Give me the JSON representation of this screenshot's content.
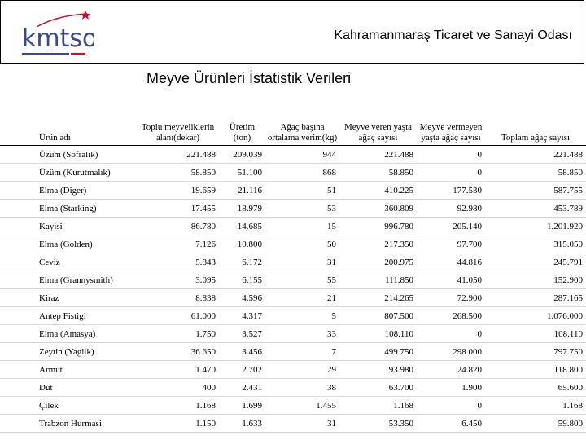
{
  "header": {
    "org_name": "Kahramanmaraş Ticaret ve Sanayi Odası",
    "logo_text": "kmtso",
    "logo_accent": "#c8102e",
    "logo_blue": "#3b4a8c"
  },
  "title": "Meyve Ürünleri İstatistik Verileri",
  "table": {
    "columns": [
      "Ürün adı",
      "Toplu meyveliklerin alanı(dekar)",
      "Üretim (ton)",
      "Ağaç başına ortalama verim(kg)",
      "Meyve veren yaşta ağaç sayısı",
      "Meyve vermeyen yaşta ağaç sayısı",
      "Toplam ağaç sayısı"
    ],
    "rows": [
      [
        "Üzüm (Sofralık)",
        "221.488",
        "209.039",
        "944",
        "221.488",
        "0",
        "221.488"
      ],
      [
        "Üzüm (Kurutmalık)",
        "58.850",
        "51.100",
        "868",
        "58.850",
        "0",
        "58.850"
      ],
      [
        "Elma (Diger)",
        "19.659",
        "21.116",
        "51",
        "410.225",
        "177.530",
        "587.755"
      ],
      [
        "Elma (Starking)",
        "17.455",
        "18.979",
        "53",
        "360.809",
        "92.980",
        "453.789"
      ],
      [
        "Kayisi",
        "86.780",
        "14.685",
        "15",
        "996.780",
        "205.140",
        "1.201.920"
      ],
      [
        "Elma (Golden)",
        "7.126",
        "10.800",
        "50",
        "217.350",
        "97.700",
        "315.050"
      ],
      [
        "Ceviz",
        "5.843",
        "6.172",
        "31",
        "200.975",
        "44.816",
        "245.791"
      ],
      [
        "Elma (Grannysmith)",
        "3.095",
        "6.155",
        "55",
        "111.850",
        "41.050",
        "152.900"
      ],
      [
        "Kiraz",
        "8.838",
        "4.596",
        "21",
        "214.265",
        "72.900",
        "287.165"
      ],
      [
        "Antep Fistigi",
        "61.000",
        "4.317",
        "5",
        "807.500",
        "268.500",
        "1.076.000"
      ],
      [
        "Elma (Amasya)",
        "1.750",
        "3.527",
        "33",
        "108.110",
        "0",
        "108.110"
      ],
      [
        "Zeytin (Yaglik)",
        "36.650",
        "3.456",
        "7",
        "499.750",
        "298.000",
        "797.750"
      ],
      [
        "Armut",
        "1.470",
        "2.702",
        "29",
        "93.980",
        "24.820",
        "118.800"
      ],
      [
        "Dut",
        "400",
        "2.431",
        "38",
        "63.700",
        "1.900",
        "65.600"
      ],
      [
        "Çilek",
        "1.168",
        "1.699",
        "1.455",
        "1.168",
        "0",
        "1.168"
      ],
      [
        "Trabzon Hurmasi",
        "1.150",
        "1.633",
        "31",
        "53.350",
        "6.450",
        "59.800"
      ]
    ]
  }
}
